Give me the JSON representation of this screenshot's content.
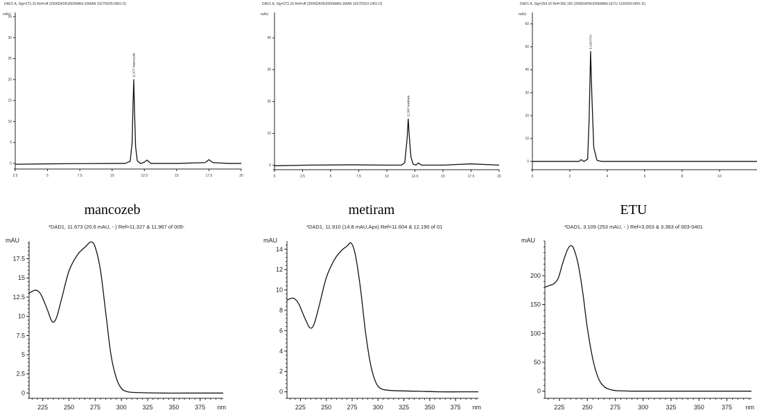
{
  "captions": [
    "mancozeb",
    "metiram",
    "ETU"
  ],
  "chart_data": [
    {
      "type": "line",
      "header": "DAD1 A, Sig=272,16 Ref=off (2006DATA\\2006MAN-10MAN 1027D005-0801 D)",
      "ylabel": "mAU",
      "xlim": [
        2.5,
        20
      ],
      "ylim": [
        -1,
        36
      ],
      "xticks": [
        2.5,
        5,
        7.5,
        10,
        12.5,
        15,
        17.5,
        20
      ],
      "yticks": [
        0,
        5,
        10,
        15,
        20,
        25,
        30,
        35
      ],
      "peak_label": "11.677 mancozeb",
      "x": [
        2.5,
        5,
        7,
        10,
        11,
        11.4,
        11.55,
        11.62,
        11.677,
        11.74,
        11.82,
        11.95,
        12.2,
        12.5,
        12.7,
        13,
        15,
        17.2,
        17.5,
        17.8,
        19,
        20
      ],
      "y": [
        -0.2,
        -0.1,
        -0.05,
        0,
        0,
        0.5,
        5,
        14,
        20,
        12,
        4,
        0.6,
        0,
        0.3,
        0.8,
        0,
        0,
        0.2,
        0.9,
        0.2,
        0,
        0
      ]
    },
    {
      "type": "line",
      "header": "DAD1 A, Sig=272,16 Ref=off (2006DATA\\2006MAN-1MAN 1027D010-1401 D)",
      "ylabel": "mAU",
      "xlim": [
        0,
        20
      ],
      "ylim": [
        -1,
        48
      ],
      "xticks": [
        0,
        2.5,
        5,
        7.5,
        10,
        12.5,
        15,
        17.5,
        20
      ],
      "yticks": [
        0,
        10,
        20,
        30,
        40
      ],
      "peak_label": "11.907 metiram",
      "x": [
        0,
        3,
        7,
        10,
        11.3,
        11.6,
        11.8,
        11.907,
        12,
        12.15,
        12.35,
        12.6,
        12.8,
        13.1,
        15,
        17.5,
        20
      ],
      "y": [
        -0.2,
        0,
        0.1,
        0,
        0,
        0.8,
        8,
        14.5,
        9,
        2.5,
        0.3,
        0,
        0.7,
        0,
        0,
        0.4,
        0
      ]
    },
    {
      "type": "line",
      "header": "DAD1 A, Sig=254,16 Ref=360,100 (2006DATA\\2006MAN-1ETU 1102003-0401 D)",
      "ylabel": "mAU",
      "xlim": [
        0,
        12
      ],
      "ylim": [
        -3,
        65
      ],
      "xticks": [
        0,
        2,
        4,
        6,
        8,
        10
      ],
      "yticks": [
        0,
        10,
        20,
        30,
        40,
        50,
        60
      ],
      "peak_label": "3.109 ETU",
      "x": [
        0,
        2,
        2.5,
        2.6,
        2.75,
        2.95,
        3.03,
        3.109,
        3.18,
        3.28,
        3.45,
        3.7,
        6,
        12
      ],
      "y": [
        0,
        0,
        0,
        0.8,
        0,
        1,
        18,
        48,
        28,
        6,
        0.5,
        0,
        0,
        0
      ]
    },
    {
      "type": "line",
      "header": "*DAD1, 11.673 (20.6 mAU, - ) Ref=11.327 & 11.967 of 005-",
      "ylabel": "mAU",
      "xlim": [
        212,
        397
      ],
      "ylim": [
        -0.5,
        19.8
      ],
      "xticks": [
        225,
        250,
        275,
        300,
        325,
        350,
        375
      ],
      "yticks": [
        0,
        2.5,
        5,
        7.5,
        10,
        12.5,
        15,
        17.5
      ],
      "xunit": "nm",
      "x": [
        212,
        218,
        223,
        229,
        234,
        238,
        243,
        250,
        258,
        266,
        271,
        275,
        280,
        285,
        290,
        295,
        300,
        305,
        310,
        320,
        340,
        360,
        380,
        397
      ],
      "y": [
        13.0,
        13.4,
        12.9,
        11.0,
        9.3,
        9.8,
        12.3,
        15.9,
        18.0,
        19.1,
        19.7,
        19.0,
        16.0,
        10.5,
        5.0,
        2.0,
        0.6,
        0.2,
        0.1,
        0.05,
        0.0,
        0.0,
        0.0,
        0.0
      ]
    },
    {
      "type": "line",
      "header": "*DAD1, 11.910 (14.8 mAU,Apx) Ref=11.604 & 12.190 of 01",
      "ylabel": "mAU",
      "xlim": [
        212,
        397
      ],
      "ylim": [
        -0.5,
        14.8
      ],
      "xticks": [
        225,
        250,
        275,
        300,
        325,
        350,
        375
      ],
      "yticks": [
        0,
        2,
        4,
        6,
        8,
        10,
        12,
        14
      ],
      "xunit": "nm",
      "x": [
        212,
        218,
        223,
        229,
        234,
        238,
        243,
        250,
        258,
        265,
        270,
        274,
        278,
        283,
        288,
        293,
        298,
        303,
        310,
        320,
        340,
        360,
        380,
        397
      ],
      "y": [
        9.0,
        9.2,
        8.7,
        7.3,
        6.3,
        6.6,
        8.4,
        11.2,
        13.0,
        13.9,
        14.3,
        14.6,
        13.5,
        10.2,
        5.8,
        2.6,
        0.9,
        0.3,
        0.15,
        0.1,
        0.05,
        0.0,
        0.0,
        0.0
      ]
    },
    {
      "type": "line",
      "header": "*DAD1, 3.109 (253 mAU, - ) Ref=3.003 & 3.363 of 003-0401",
      "ylabel": "mAU",
      "xlim": [
        212,
        397
      ],
      "ylim": [
        -10,
        260
      ],
      "xticks": [
        225,
        250,
        275,
        300,
        325,
        350,
        375
      ],
      "yticks": [
        0,
        50,
        100,
        150,
        200
      ],
      "xunit": "nm",
      "x": [
        212,
        216,
        220,
        224,
        228,
        232,
        235,
        238,
        242,
        246,
        250,
        255,
        260,
        265,
        270,
        275,
        280,
        290,
        300,
        397
      ],
      "y": [
        180,
        183,
        186,
        196,
        222,
        244,
        252,
        246,
        218,
        170,
        110,
        55,
        22,
        8,
        3,
        1,
        0.5,
        0,
        0,
        0
      ]
    }
  ]
}
